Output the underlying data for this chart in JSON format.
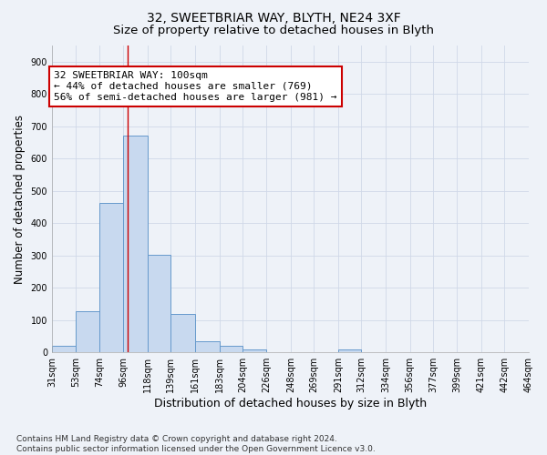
{
  "title1": "32, SWEETBRIAR WAY, BLYTH, NE24 3XF",
  "title2": "Size of property relative to detached houses in Blyth",
  "xlabel": "Distribution of detached houses by size in Blyth",
  "ylabel": "Number of detached properties",
  "footnote": "Contains HM Land Registry data © Crown copyright and database right 2024.\nContains public sector information licensed under the Open Government Licence v3.0.",
  "bar_edges": [
    31,
    53,
    74,
    96,
    118,
    139,
    161,
    183,
    204,
    226,
    248,
    269,
    291,
    312,
    334,
    356,
    377,
    399,
    421,
    442,
    464
  ],
  "bar_heights": [
    20,
    128,
    462,
    672,
    302,
    120,
    35,
    20,
    10,
    0,
    0,
    0,
    10,
    0,
    0,
    0,
    0,
    0,
    0,
    0
  ],
  "bar_color": "#c8d9ef",
  "bar_edge_color": "#6699cc",
  "property_line_x": 100,
  "property_line_color": "#cc0000",
  "annotation_line1": "32 SWEETBRIAR WAY: 100sqm",
  "annotation_line2": "← 44% of detached houses are smaller (769)",
  "annotation_line3": "56% of semi-detached houses are larger (981) →",
  "annotation_box_color": "#cc0000",
  "ylim": [
    0,
    950
  ],
  "yticks": [
    0,
    100,
    200,
    300,
    400,
    500,
    600,
    700,
    800,
    900
  ],
  "x_tick_labels": [
    "31sqm",
    "53sqm",
    "74sqm",
    "96sqm",
    "118sqm",
    "139sqm",
    "161sqm",
    "183sqm",
    "204sqm",
    "226sqm",
    "248sqm",
    "269sqm",
    "291sqm",
    "312sqm",
    "334sqm",
    "356sqm",
    "377sqm",
    "399sqm",
    "421sqm",
    "442sqm",
    "464sqm"
  ],
  "grid_color": "#d0d8e8",
  "background_color": "#eef2f8",
  "title1_fontsize": 10,
  "title2_fontsize": 9.5,
  "xlabel_fontsize": 9,
  "ylabel_fontsize": 8.5,
  "tick_fontsize": 7,
  "footnote_fontsize": 6.5,
  "annotation_fontsize": 8
}
